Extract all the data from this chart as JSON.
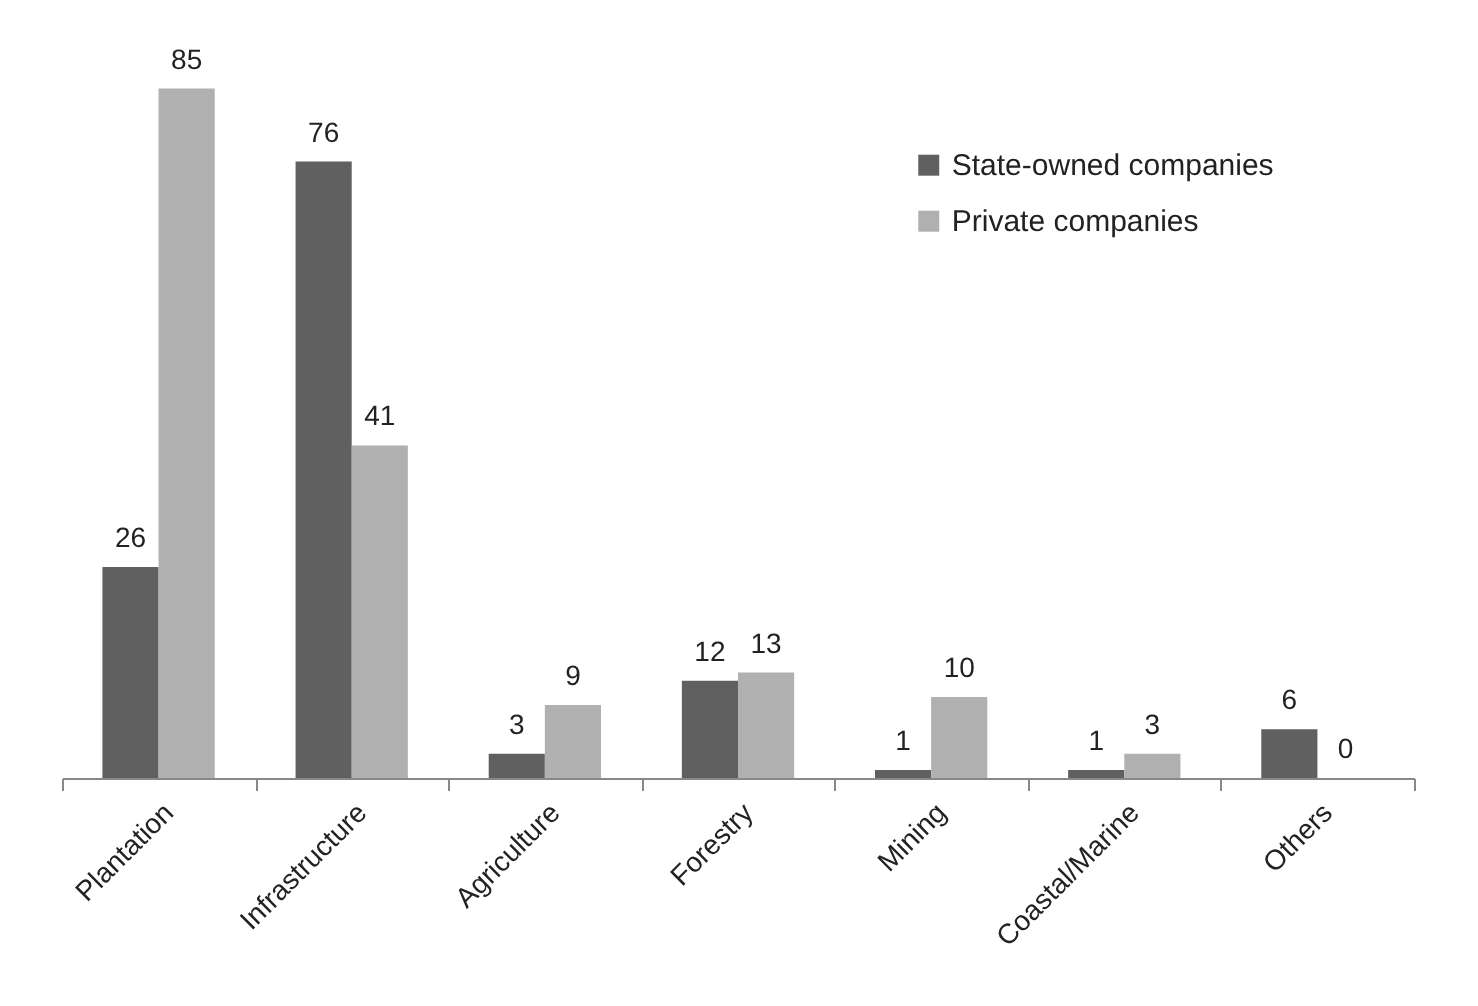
{
  "chart_data": {
    "type": "bar",
    "categories": [
      "Plantation",
      "Infrastructure",
      "Agriculture",
      "Forestry",
      "Mining",
      "Coastal/Marine",
      "Others"
    ],
    "series": [
      {
        "name": "State-owned companies",
        "color": "#606060",
        "values": [
          26,
          76,
          3,
          12,
          1,
          1,
          6
        ]
      },
      {
        "name": "Private companies",
        "color": "#b0b0b0",
        "values": [
          85,
          41,
          9,
          13,
          10,
          3,
          0
        ]
      }
    ],
    "data_labels": true,
    "legend": "top right",
    "tick_labels": "x"
  }
}
